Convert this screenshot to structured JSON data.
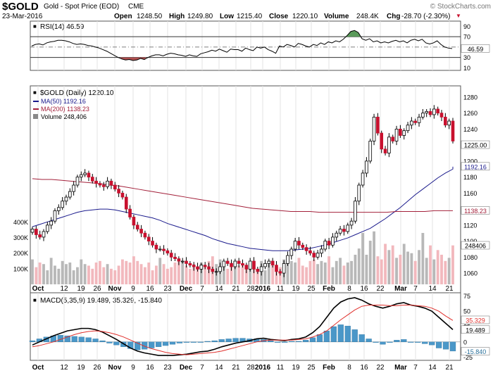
{
  "header": {
    "symbol": "$GOLD",
    "name": "Gold - Spot Price (EOD)",
    "exchange": "CME",
    "watermark": "© StockCharts.com",
    "date": "23-Mar-2016",
    "open_label": "Open",
    "open": "1248.50",
    "high_label": "High",
    "high": "1249.80",
    "low_label": "Low",
    "low": "1215.40",
    "close_label": "Close",
    "close": "1220.10",
    "volume_label": "Volume",
    "volume": "248.4K",
    "chg_label": "Chg",
    "chg": "-28.70 (-2.30%)",
    "down_marker": "▼"
  },
  "colors": {
    "up": "#ffffff",
    "down": "#c8102e",
    "ma50": "#1a1a8c",
    "ma200": "#a3203a",
    "vol_up": "#b8b8b8",
    "vol_down": "#f2b8bd",
    "rsi_overbought": "#5a9a5a",
    "rsi_oversold": "#b05050",
    "macd_line": "#000000",
    "signal_line": "#e0302c",
    "histogram": "#4a97c8"
  },
  "chart_data": [
    {
      "type": "line",
      "title": "RSI(14) 46.59",
      "legend_square": "■",
      "y_ticks": [
        10,
        30,
        50,
        70,
        90
      ],
      "ylim": [
        5,
        100
      ],
      "levels": [
        30,
        70
      ],
      "current_label": "46.59",
      "x_ticks": [
        "Oct",
        "12",
        "19",
        "26",
        "Nov",
        "9",
        "16",
        "23",
        "Dec",
        "7",
        "14",
        "21",
        "28",
        "2016",
        "11",
        "19",
        "25",
        "Feb",
        "8",
        "16",
        "22",
        "Mar",
        "7",
        "14",
        "21"
      ],
      "values": [
        52,
        55,
        56,
        54,
        58,
        60,
        61,
        63,
        63,
        62,
        60,
        57,
        55,
        56,
        55,
        53,
        52,
        50,
        48,
        45,
        42,
        38,
        34,
        30,
        27,
        25,
        26,
        24,
        25,
        28,
        26,
        30,
        33,
        35,
        35,
        33,
        36,
        38,
        37,
        35,
        34,
        32,
        35,
        33,
        32,
        37,
        39,
        41,
        44,
        42,
        46,
        43,
        40,
        46,
        45,
        45,
        42,
        48,
        45,
        43,
        50,
        48,
        50,
        45,
        42,
        38,
        52,
        50,
        55,
        53,
        50,
        57,
        55,
        52,
        50,
        55,
        53,
        58,
        55,
        60,
        58,
        62,
        60,
        65,
        72,
        80,
        82,
        78,
        66,
        63,
        66,
        60,
        62,
        58,
        60,
        58,
        61,
        63,
        60,
        62,
        58,
        63,
        65,
        62,
        65,
        58,
        56,
        58,
        62,
        55,
        50,
        48,
        47
      ]
    },
    {
      "type": "candlestick",
      "title": "$GOLD (Daily) 1220.10",
      "legend_square": "■",
      "y_ticks": [
        1060,
        1080,
        1100,
        1120,
        1140,
        1160,
        1180,
        1200,
        1220,
        1240,
        1260,
        1280
      ],
      "ylim": [
        1046,
        1294
      ],
      "x_ticks": [
        "Oct",
        "12",
        "19",
        "26",
        "Nov",
        "9",
        "16",
        "23",
        "Dec",
        "7",
        "14",
        "21",
        "28",
        "2016",
        "11",
        "19",
        "25",
        "Feb",
        "8",
        "16",
        "22",
        "Mar",
        "7",
        "14",
        "21"
      ],
      "close": [
        1115,
        1108,
        1105,
        1112,
        1120,
        1125,
        1138,
        1142,
        1150,
        1155,
        1162,
        1170,
        1180,
        1183,
        1185,
        1180,
        1175,
        1172,
        1170,
        1168,
        1175,
        1170,
        1165,
        1160,
        1155,
        1140,
        1130,
        1120,
        1115,
        1110,
        1105,
        1100,
        1095,
        1090,
        1090,
        1088,
        1085,
        1080,
        1078,
        1075,
        1075,
        1072,
        1070,
        1068,
        1065,
        1070,
        1068,
        1065,
        1062,
        1062,
        1068,
        1075,
        1072,
        1068,
        1075,
        1072,
        1070,
        1065,
        1075,
        1065,
        1062,
        1068,
        1072,
        1075,
        1070,
        1062,
        1060,
        1072,
        1082,
        1090,
        1100,
        1095,
        1092,
        1088,
        1085,
        1080,
        1085,
        1090,
        1100,
        1095,
        1105,
        1110,
        1115,
        1112,
        1120,
        1125,
        1150,
        1170,
        1185,
        1200,
        1225,
        1255,
        1235,
        1215,
        1210,
        1230,
        1225,
        1240,
        1232,
        1238,
        1245,
        1250,
        1248,
        1255,
        1260,
        1262,
        1258,
        1265,
        1260,
        1255,
        1245,
        1250,
        1225
      ],
      "series": [
        {
          "name": "MA(50) 1192.16",
          "values": [
            1118,
            1121,
            1124,
            1127,
            1130,
            1133,
            1136,
            1138,
            1139,
            1140,
            1140,
            1139,
            1137,
            1135,
            1133,
            1131,
            1129,
            1126,
            1122,
            1119,
            1116,
            1113,
            1110,
            1107,
            1103,
            1100,
            1097,
            1095,
            1093,
            1091,
            1090,
            1089,
            1088,
            1088,
            1088,
            1089,
            1090,
            1091,
            1093,
            1095,
            1098,
            1101,
            1104,
            1108,
            1112,
            1116,
            1122,
            1128,
            1135,
            1142,
            1150,
            1158,
            1165,
            1172,
            1179,
            1185,
            1190,
            1193
          ],
          "label": "1192.16",
          "start": 0,
          "step": 2
        },
        {
          "name": "MA(200) 1138.23",
          "values": [
            1178,
            1177,
            1177,
            1176,
            1175,
            1174,
            1173,
            1172,
            1170,
            1169,
            1167,
            1165,
            1163,
            1161,
            1159,
            1157,
            1155,
            1153,
            1151,
            1149,
            1147,
            1145,
            1143,
            1141,
            1140,
            1139,
            1138,
            1137,
            1137,
            1137,
            1136,
            1136,
            1136,
            1136,
            1136,
            1136,
            1136,
            1136,
            1137,
            1137,
            1137,
            1137,
            1138,
            1138,
            1138
          ],
          "label": "1138.23",
          "start": 0,
          "step": 2.55
        }
      ],
      "volume_legend": "Volume 248,406",
      "volume_ticks": [
        "100K",
        "200K",
        "300K",
        "400K"
      ],
      "volume_ylim": [
        0,
        470
      ],
      "volume_label": "248406",
      "volume": [
        160,
        110,
        140,
        130,
        90,
        170,
        120,
        100,
        150,
        130,
        140,
        90,
        110,
        160,
        130,
        120,
        100,
        140,
        150,
        110,
        130,
        100,
        90,
        120,
        160,
        150,
        140,
        180,
        150,
        130,
        110,
        140,
        90,
        120,
        170,
        130,
        100,
        110,
        140,
        160,
        150,
        120,
        100,
        130,
        110,
        140,
        120,
        150,
        180,
        130,
        160,
        110,
        100,
        140,
        150,
        120,
        130,
        110,
        140,
        120,
        100,
        150,
        90,
        130,
        120,
        100,
        110,
        160,
        180,
        150,
        140,
        170,
        120,
        110,
        150,
        160,
        130,
        150,
        140,
        180,
        110,
        150,
        170,
        120,
        140,
        150,
        190,
        230,
        330,
        190,
        280,
        340,
        180,
        160,
        260,
        220,
        250,
        170,
        190,
        260,
        210,
        200,
        150,
        220,
        330,
        170,
        250,
        160,
        220,
        190,
        150,
        170,
        250
      ]
    },
    {
      "type": "line",
      "title": "MACD(5,35,9) 19.489, 35.329, -15.840",
      "legend_square": "■",
      "y_ticks": [
        -25,
        0,
        25,
        50,
        75
      ],
      "ylim": [
        -30,
        80
      ],
      "x_ticks": [
        "Oct",
        "12",
        "19",
        "26",
        "Nov",
        "9",
        "16",
        "23",
        "Dec",
        "7",
        "14",
        "21",
        "28",
        "2016",
        "11",
        "19",
        "25",
        "Feb",
        "8",
        "16",
        "22",
        "Mar",
        "7",
        "14",
        "21"
      ],
      "labels": {
        "signal": "35.329",
        "macd": "19.489",
        "hist": "-15.840"
      },
      "series": [
        {
          "name": "MACD",
          "values": [
            -5,
            0,
            5,
            10,
            14,
            18,
            20,
            22,
            22,
            20,
            16,
            10,
            4,
            -3,
            -10,
            -15,
            -18,
            -20,
            -22,
            -22,
            -22,
            -21,
            -20,
            -18,
            -16,
            -15,
            -12,
            -8,
            -5,
            -2,
            0,
            2,
            5,
            6,
            4,
            3,
            2,
            4,
            5,
            8,
            15,
            25,
            40,
            55,
            65,
            70,
            72,
            68,
            62,
            58,
            55,
            58,
            62,
            64,
            60,
            58,
            55,
            50,
            40,
            30,
            20
          ]
        },
        {
          "name": "Signal",
          "values": [
            -8,
            -6,
            -3,
            0,
            4,
            8,
            12,
            15,
            17,
            18,
            17,
            15,
            12,
            8,
            3,
            -2,
            -7,
            -11,
            -14,
            -17,
            -19,
            -20,
            -21,
            -20,
            -19,
            -18,
            -17,
            -15,
            -12,
            -9,
            -6,
            -3,
            0,
            2,
            3,
            3,
            3,
            3,
            4,
            5,
            8,
            12,
            18,
            27,
            36,
            44,
            52,
            58,
            60,
            60,
            60,
            59,
            59,
            60,
            60,
            59,
            58,
            55,
            50,
            42,
            35
          ]
        }
      ],
      "histogram": [
        2,
        5,
        8,
        10,
        11,
        10,
        9,
        8,
        7,
        5,
        2,
        -2,
        -5,
        -8,
        -11,
        -13,
        -12,
        -10,
        -8,
        -6,
        -4,
        -2,
        -1,
        -1,
        0,
        1,
        2,
        4,
        5,
        6,
        6,
        5,
        5,
        4,
        2,
        0,
        -1,
        1,
        1,
        3,
        7,
        12,
        18,
        25,
        28,
        26,
        20,
        12,
        5,
        -1,
        -4,
        -1,
        3,
        4,
        0,
        -1,
        -3,
        -5,
        -10,
        -12,
        -15
      ]
    }
  ]
}
